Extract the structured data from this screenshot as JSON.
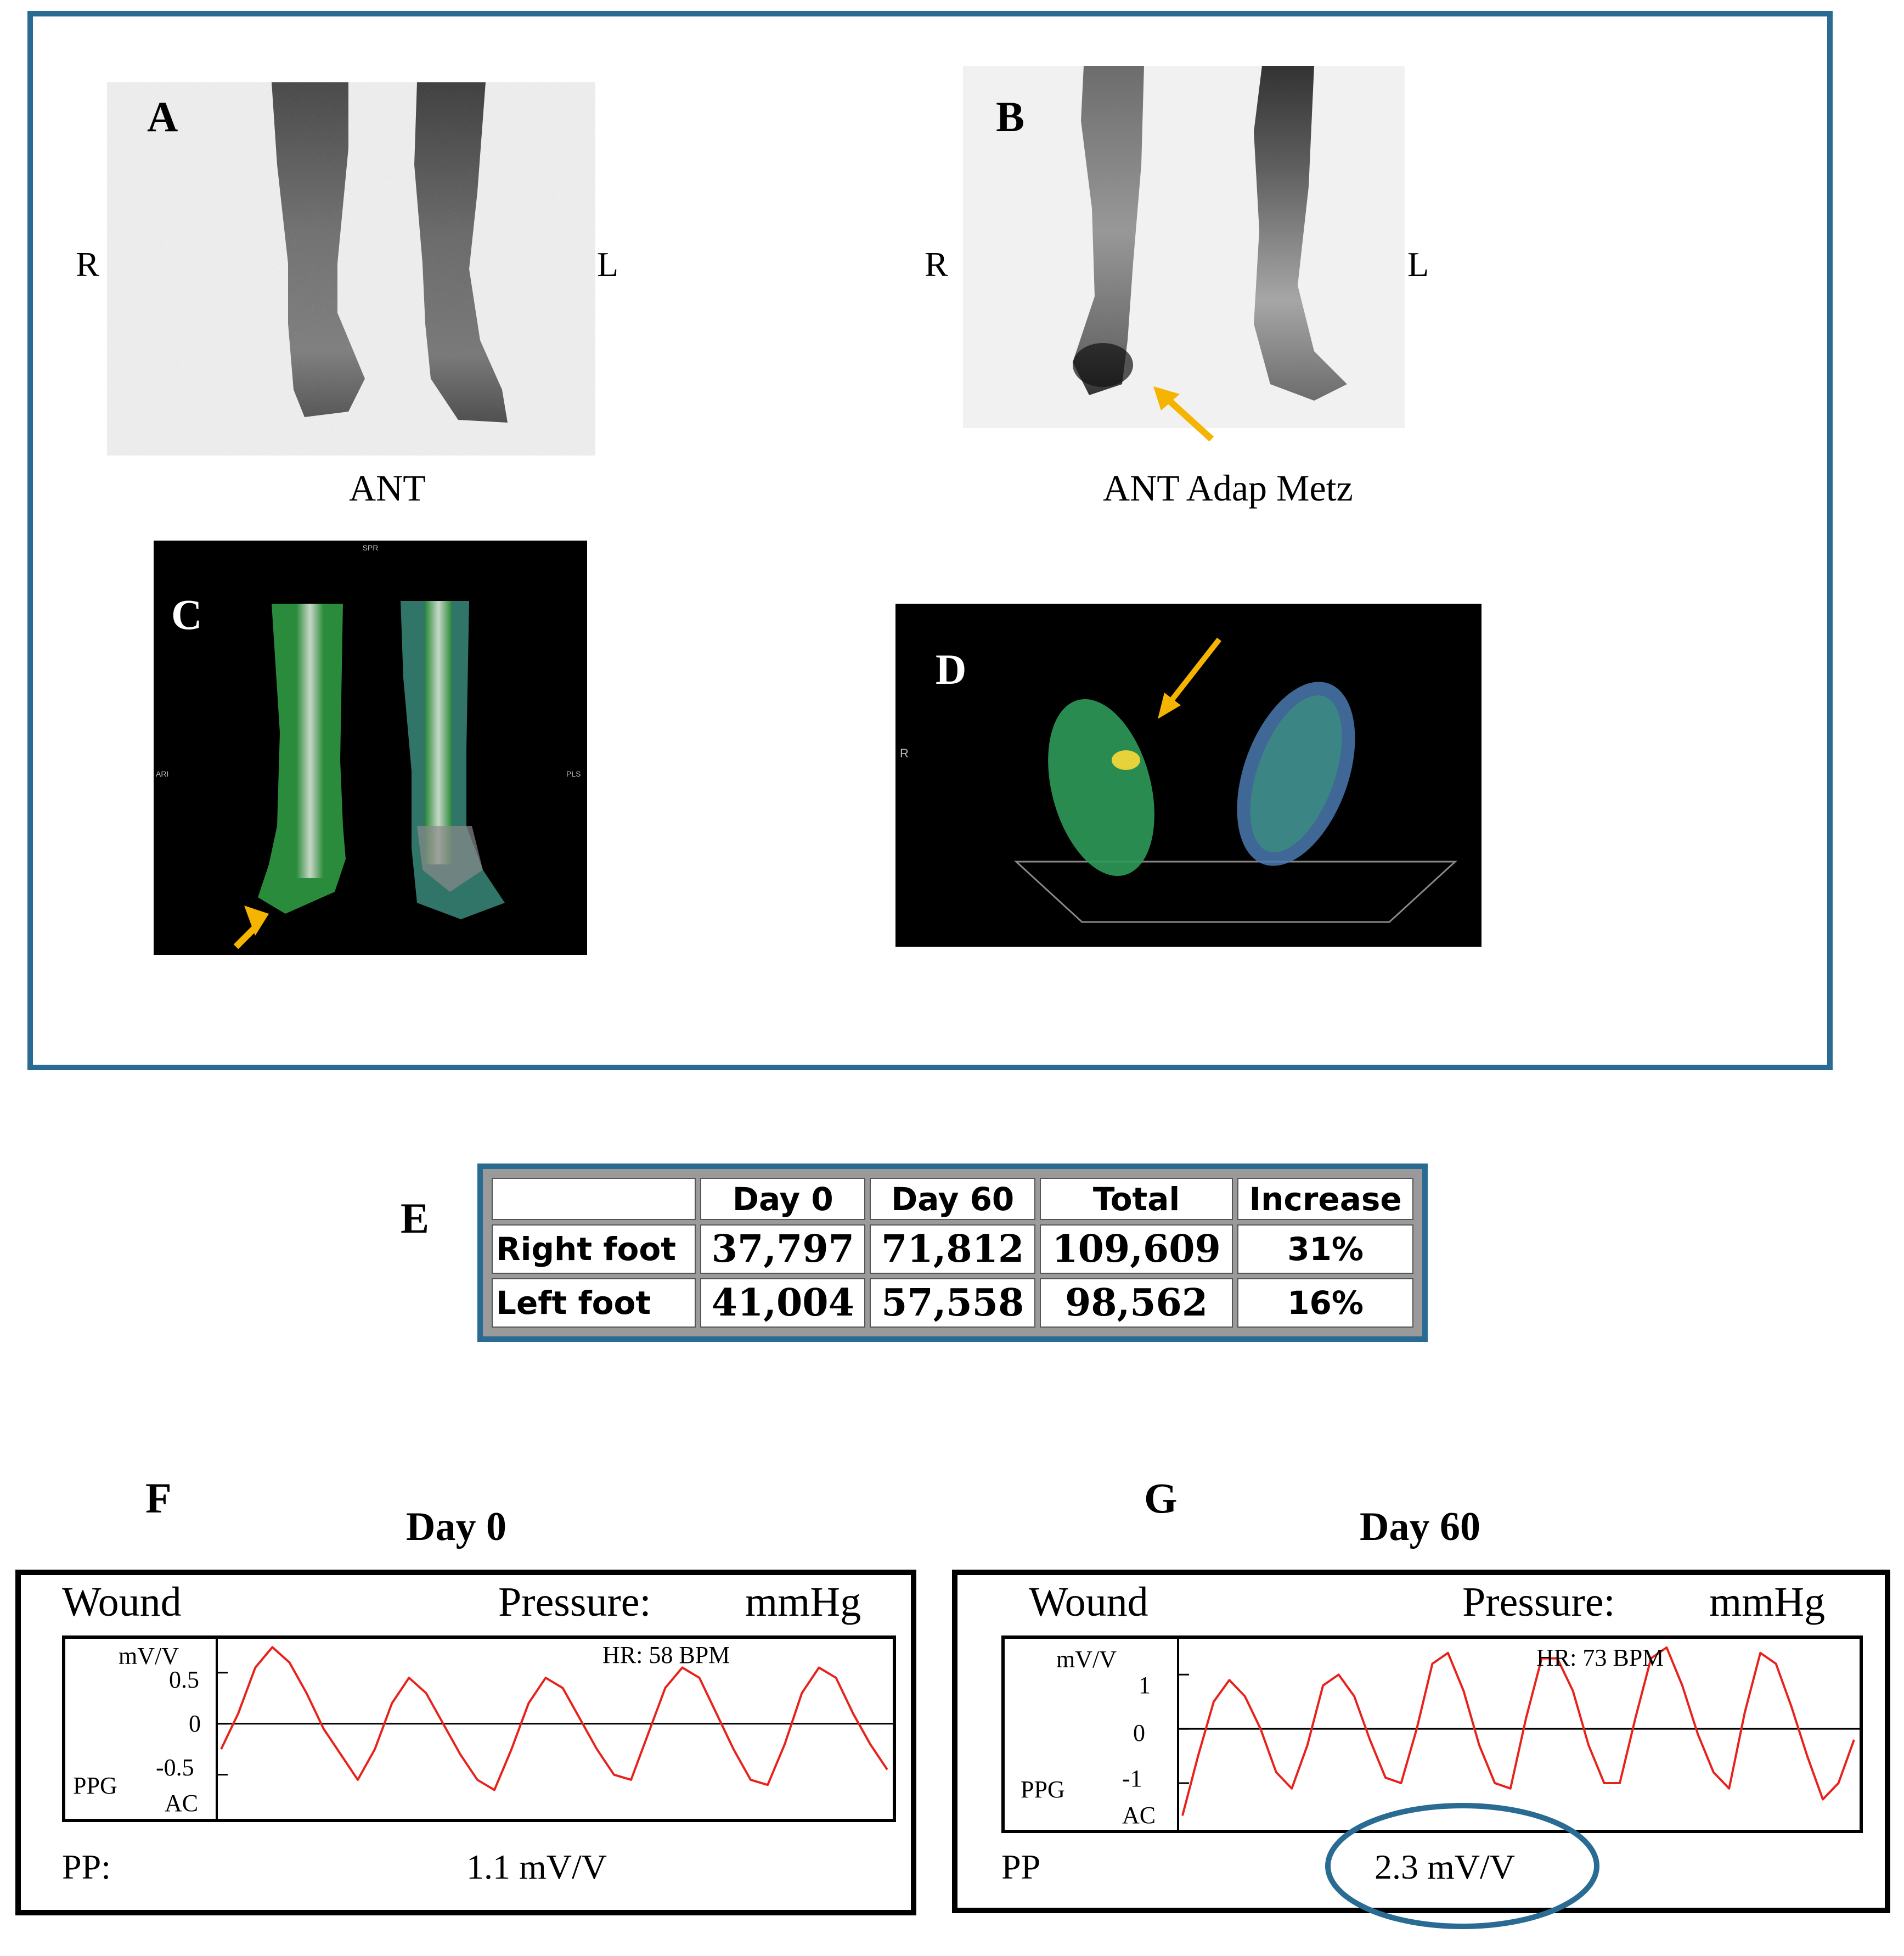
{
  "panels": {
    "a": {
      "letter": "A",
      "left_label": "R",
      "right_label": "L",
      "caption": "ANT"
    },
    "b": {
      "letter": "B",
      "left_label": "R",
      "right_label": "L",
      "caption": "ANT Adap Metz"
    },
    "c": {
      "letter": "C",
      "corner_tags": [
        "SPR",
        "ARI",
        "PLS"
      ]
    },
    "d": {
      "letter": "D",
      "side_tag": "R"
    },
    "e": {
      "letter": "E"
    },
    "f": {
      "letter": "F"
    },
    "g": {
      "letter": "G"
    }
  },
  "table": {
    "headers": [
      "",
      "Day 0",
      "Day 60",
      "Total",
      "Increase"
    ],
    "rows": [
      [
        "Right foot",
        "37,797",
        "71,812",
        "109,609",
        "31%"
      ],
      [
        "Left foot",
        "41,004",
        "57,558",
        "98,562",
        "16%"
      ]
    ]
  },
  "ppg": [
    {
      "title": "Day 0",
      "site": "Wound",
      "pressure_label": "Pressure:",
      "pressure_unit": "mmHg",
      "unit_label": "mV/V",
      "hr": "HR:  58 BPM",
      "ppg_label": "PPG",
      "ac_label": "AC",
      "pp_label": "PP:",
      "pp_value": "1.1 mV/V",
      "tick_labels": [
        "0.5",
        "0",
        "-0.5"
      ]
    },
    {
      "title": "Day 60",
      "site": "Wound",
      "pressure_label": "Pressure:",
      "pressure_unit": "mmHg",
      "unit_label": "mV/V",
      "hr": "HR:   73 BPM",
      "ppg_label": "PPG",
      "ac_label": "AC",
      "pp_label": "PP",
      "pp_value": "2.3 mV/V",
      "tick_labels": [
        "1",
        "0",
        "-1"
      ]
    }
  ],
  "chart_data": [
    {
      "type": "line",
      "title": "Day 0",
      "ylabel": "mV/V",
      "ylim": [
        -0.9,
        0.8
      ],
      "yticks": [
        0.5,
        0,
        -0.5
      ],
      "series": [
        {
          "values": [
            -0.25,
            0.1,
            0.55,
            0.75,
            0.6,
            0.3,
            -0.05,
            -0.3,
            -0.55,
            -0.25,
            0.2,
            0.45,
            0.3,
            0.0,
            -0.3,
            -0.55,
            -0.65,
            -0.25,
            0.2,
            0.45,
            0.35,
            0.05,
            -0.25,
            -0.5,
            -0.55,
            -0.1,
            0.35,
            0.55,
            0.45,
            0.1,
            -0.25,
            -0.55,
            -0.6,
            -0.2,
            0.3,
            0.55,
            0.45,
            0.1,
            -0.2,
            -0.45
          ]
        }
      ],
      "line_color": "#e8221b"
    },
    {
      "type": "line",
      "title": "Day 60",
      "ylabel": "mV/V",
      "ylim": [
        -1.8,
        1.6
      ],
      "yticks": [
        1,
        0,
        -1
      ],
      "series": [
        {
          "values": [
            -1.6,
            -0.5,
            0.5,
            0.9,
            0.6,
            0.0,
            -0.8,
            -1.1,
            -0.3,
            0.8,
            1.0,
            0.6,
            -0.2,
            -0.9,
            -1.0,
            0.0,
            1.2,
            1.4,
            0.7,
            -0.3,
            -1.0,
            -1.1,
            0.2,
            1.3,
            1.3,
            0.7,
            -0.3,
            -1.0,
            -1.0,
            0.2,
            1.3,
            1.5,
            0.8,
            -0.1,
            -0.8,
            -1.1,
            0.3,
            1.4,
            1.2,
            0.4,
            -0.5,
            -1.3,
            -1.0,
            -0.2
          ]
        }
      ],
      "line_color": "#e8221b"
    }
  ]
}
